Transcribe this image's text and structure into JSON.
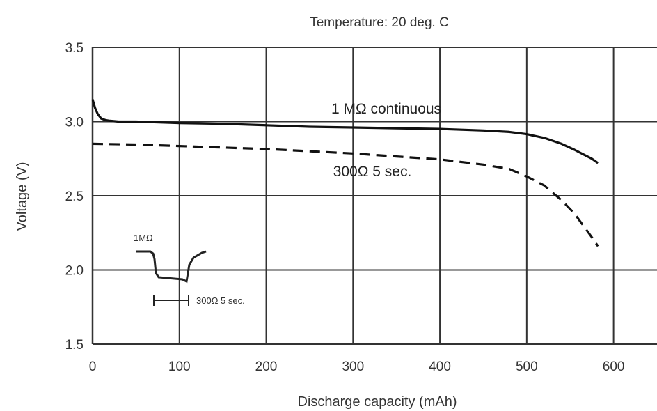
{
  "chart_data": {
    "type": "line",
    "title": "Temperature: 20 deg. C",
    "xlabel": "Discharge capacity (mAh)",
    "ylabel": "Voltage (V)",
    "xlim": [
      0,
      650
    ],
    "ylim": [
      1.5,
      3.5
    ],
    "xticks": [
      "0",
      "100",
      "200",
      "300",
      "400",
      "500",
      "600"
    ],
    "yticks": [
      "1.5",
      "2.0",
      "2.5",
      "3.0",
      "3.5"
    ],
    "grid": true,
    "series": [
      {
        "name": "1 MΩ continuous",
        "style": "solid",
        "x": [
          0,
          3,
          6,
          10,
          15,
          20,
          30,
          50,
          100,
          150,
          200,
          250,
          300,
          350,
          400,
          450,
          480,
          500,
          520,
          540,
          555,
          565,
          575,
          582
        ],
        "y": [
          3.15,
          3.09,
          3.05,
          3.02,
          3.01,
          3.005,
          3.0,
          3.0,
          2.99,
          2.985,
          2.975,
          2.965,
          2.96,
          2.955,
          2.95,
          2.94,
          2.93,
          2.915,
          2.89,
          2.85,
          2.81,
          2.78,
          2.75,
          2.72
        ]
      },
      {
        "name": "300Ω 5 sec.",
        "style": "dashed",
        "x": [
          0,
          50,
          100,
          150,
          200,
          250,
          300,
          350,
          400,
          450,
          480,
          500,
          520,
          540,
          555,
          565,
          575,
          582
        ],
        "y": [
          2.85,
          2.845,
          2.835,
          2.825,
          2.815,
          2.8,
          2.785,
          2.765,
          2.745,
          2.71,
          2.68,
          2.63,
          2.57,
          2.47,
          2.38,
          2.3,
          2.22,
          2.16
        ]
      }
    ],
    "inset": {
      "upper_label": "1MΩ",
      "lower_label": "300Ω 5 sec."
    }
  }
}
